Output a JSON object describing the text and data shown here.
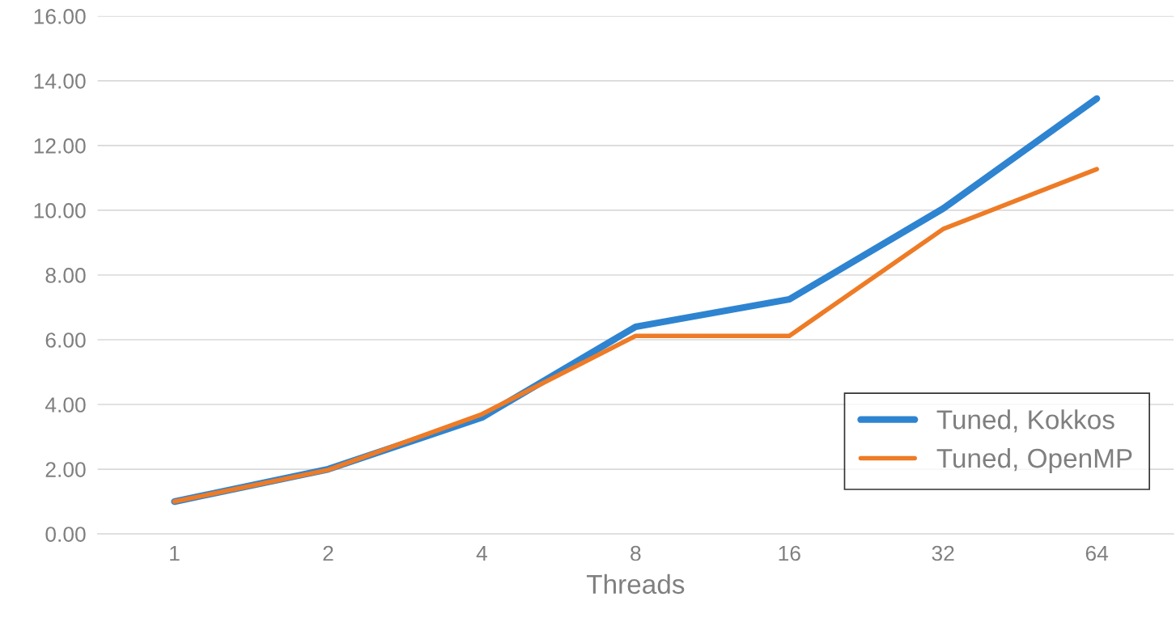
{
  "chart_data": {
    "type": "line",
    "xlabel": "Threads",
    "categories": [
      "1",
      "2",
      "4",
      "8",
      "16",
      "32",
      "64"
    ],
    "series": [
      {
        "name": "Tuned, Kokkos",
        "color": "#2e84d0",
        "values": [
          1.0,
          2.0,
          3.6,
          6.4,
          7.25,
          10.05,
          13.45
        ]
      },
      {
        "name": "Tuned, OpenMP",
        "color": "#ee7b26",
        "values": [
          1.0,
          1.98,
          3.7,
          6.12,
          6.12,
          9.42,
          11.27
        ]
      }
    ],
    "ylim": [
      0,
      16
    ],
    "yticks": [
      {
        "value": 0,
        "label": "0.00"
      },
      {
        "value": 2,
        "label": "2.00"
      },
      {
        "value": 4,
        "label": "4.00"
      },
      {
        "value": 6,
        "label": "6.00"
      },
      {
        "value": 8,
        "label": "8.00"
      },
      {
        "value": 10,
        "label": "10.00"
      },
      {
        "value": 12,
        "label": "12.00"
      },
      {
        "value": 14,
        "label": "14.00"
      },
      {
        "value": 16,
        "label": "16.00"
      }
    ],
    "grid": "y",
    "legend": "bottom right",
    "marker": "none",
    "line_style": "solid"
  }
}
